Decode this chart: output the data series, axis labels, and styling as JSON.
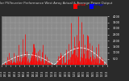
{
  "title": "Solar PV/Inverter Performance West Array Actual & Average Power Output",
  "bg_color": "#2a2a2a",
  "plot_bg_color": "#8a8a8a",
  "grid_color": "#ffffff",
  "bar_color": "#ff0000",
  "avg_line_color": "#ffffff",
  "legend_actual_color": "#ff0000",
  "legend_avg_color": "#0000ff",
  "num_points": 300,
  "y_max": 4000,
  "tick_color": "#ffffff",
  "title_color": "#cccccc",
  "xtick_labels": [
    "01/14",
    "02/14",
    "03/14",
    "04/14",
    "05/14",
    "06/14",
    "07/14",
    "08/14",
    "09/14",
    "10/14",
    "11/14",
    "12/14",
    "01/15",
    "02/15",
    "03/15",
    "04/15",
    "05/15",
    "06/15",
    "07/15",
    "08/15",
    "09/15",
    "10/15",
    "11/15",
    "12/15"
  ],
  "yticks": [
    500,
    1000,
    1500,
    2000,
    2500,
    3000,
    3500,
    4000
  ]
}
